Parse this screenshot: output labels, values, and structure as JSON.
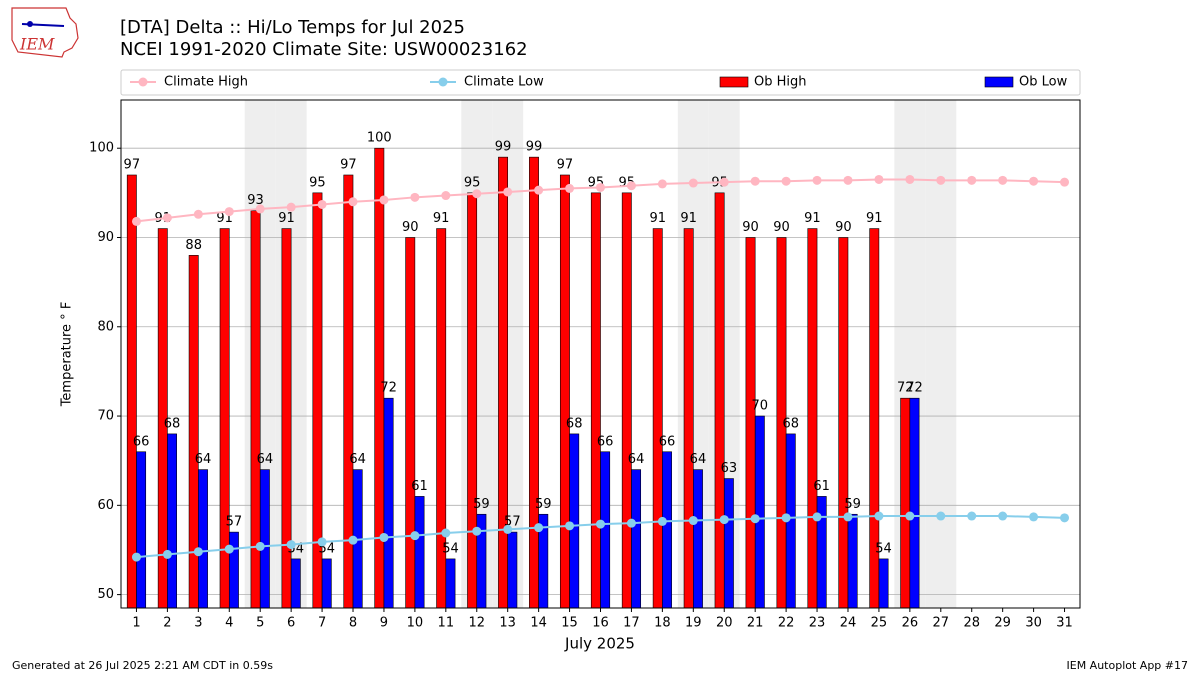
{
  "chart_data": {
    "type": "bar",
    "logo_text": "IEM",
    "title": "[DTA] Delta :: Hi/Lo Temps for Jul 2025",
    "subtitle": "NCEI 1991-2020 Climate Site: USW00023162",
    "x_label": "July 2025",
    "y_label": "Temperature ° F",
    "footer_left": "Generated at 26 Jul 2025 2:21 AM CDT in 0.59s",
    "footer_right": "IEM Autoplot App #17",
    "x": [
      1,
      2,
      3,
      4,
      5,
      6,
      7,
      8,
      9,
      10,
      11,
      12,
      13,
      14,
      15,
      16,
      17,
      18,
      19,
      20,
      21,
      22,
      23,
      24,
      25,
      26,
      27,
      28,
      29,
      30,
      31
    ],
    "xlim": [
      0.5,
      31.5
    ],
    "xticks": [
      1,
      2,
      3,
      4,
      5,
      6,
      7,
      8,
      9,
      10,
      11,
      12,
      13,
      14,
      15,
      16,
      17,
      18,
      19,
      20,
      21,
      22,
      23,
      24,
      25,
      26,
      27,
      28,
      29,
      30,
      31
    ],
    "ylim": [
      48.5,
      105.4
    ],
    "yticks": [
      50,
      60,
      70,
      80,
      90,
      100
    ],
    "grid": true,
    "shaded_days": [
      5,
      6,
      12,
      13,
      19,
      20,
      26,
      27
    ],
    "series": [
      {
        "name": "Climate High",
        "kind": "line",
        "color": "#ffb6c1",
        "values": [
          91.8,
          92.2,
          92.6,
          92.9,
          93.2,
          93.4,
          93.7,
          94.0,
          94.2,
          94.5,
          94.7,
          94.9,
          95.1,
          95.3,
          95.5,
          95.6,
          95.8,
          96.0,
          96.1,
          96.2,
          96.3,
          96.3,
          96.4,
          96.4,
          96.5,
          96.5,
          96.4,
          96.4,
          96.4,
          96.3,
          96.2
        ]
      },
      {
        "name": "Climate Low",
        "kind": "line",
        "color": "#87ceeb",
        "values": [
          54.2,
          54.5,
          54.8,
          55.1,
          55.4,
          55.6,
          55.9,
          56.1,
          56.4,
          56.6,
          56.9,
          57.1,
          57.3,
          57.5,
          57.7,
          57.9,
          58.0,
          58.2,
          58.3,
          58.4,
          58.5,
          58.6,
          58.7,
          58.7,
          58.8,
          58.8,
          58.8,
          58.8,
          58.8,
          58.7,
          58.6
        ]
      },
      {
        "name": "Ob High",
        "kind": "bar",
        "color": "#ff0000",
        "offset": -1,
        "values": [
          97,
          91,
          88,
          91,
          93,
          91,
          95,
          97,
          100,
          90,
          91,
          95,
          99,
          99,
          97,
          95,
          95,
          91,
          91,
          95,
          90,
          90,
          91,
          90,
          91,
          72,
          null,
          null,
          null,
          null,
          null
        ]
      },
      {
        "name": "Ob Low",
        "kind": "bar",
        "color": "#0000ff",
        "offset": 0,
        "values": [
          66,
          68,
          64,
          57,
          64,
          54,
          54,
          64,
          72,
          61,
          54,
          59,
          57,
          59,
          68,
          66,
          64,
          66,
          64,
          63,
          70,
          68,
          61,
          59,
          54,
          72,
          null,
          null,
          null,
          null,
          null
        ]
      }
    ]
  }
}
